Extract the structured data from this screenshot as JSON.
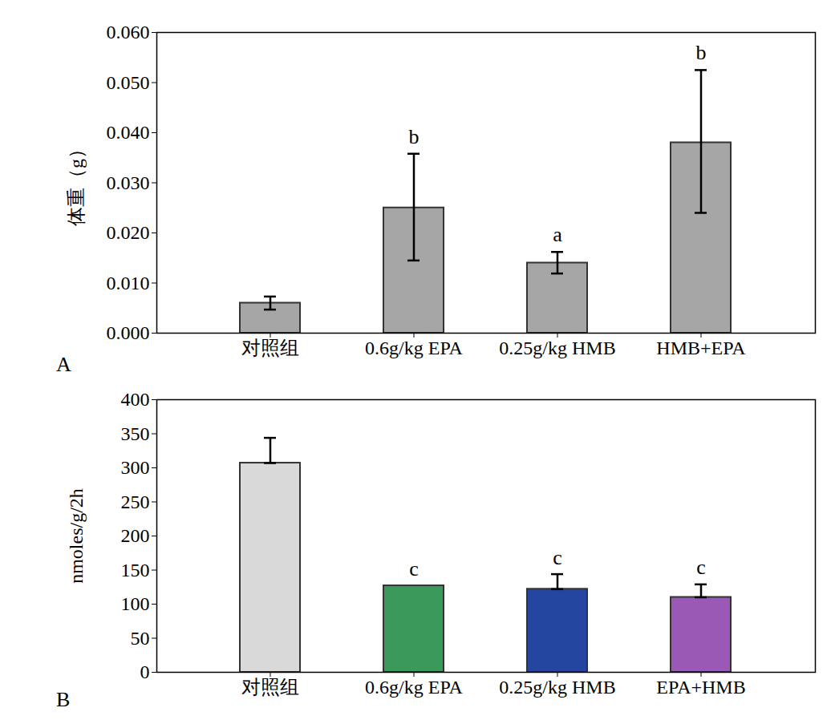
{
  "chart_data": [
    {
      "type": "bar",
      "title": "A",
      "categories": [
        "对照组",
        "0.6g/kg EPA",
        "0.25g/kg HMB",
        "HMB+EPA"
      ],
      "values": [
        0.006,
        0.025,
        0.014,
        0.038
      ],
      "errors_upper": [
        0.0013,
        0.0108,
        0.0022,
        0.0145
      ],
      "errors_lower": [
        0.0013,
        0.0105,
        0.0021,
        0.014
      ],
      "annotations": [
        null,
        "b",
        "a",
        "b"
      ],
      "color": "#a6a6a6",
      "ylabel": "体重（g）",
      "ylim": [
        0,
        0.06
      ],
      "yticks": [
        0,
        0.01,
        0.02,
        0.03,
        0.04,
        0.05,
        0.06
      ],
      "grid": false
    },
    {
      "type": "bar",
      "title": "B",
      "categories": [
        "对照组",
        "0.6g/kg EPA",
        "0.25g/kg HMB",
        "EPA+HMB"
      ],
      "values": [
        307,
        127,
        122,
        110
      ],
      "errors_upper": [
        37,
        null,
        22,
        19
      ],
      "errors_lower": [
        0,
        null,
        0,
        0
      ],
      "annotations": [
        null,
        "c",
        "c",
        "c"
      ],
      "colors": [
        "#d9d9d9",
        "#3a9a5c",
        "#2446a0",
        "#9b59b6"
      ],
      "ylabel": "nmoles/g/2h",
      "ylim": [
        0,
        400
      ],
      "yticks": [
        0,
        50,
        100,
        150,
        200,
        250,
        300,
        350,
        400
      ],
      "grid": false
    }
  ]
}
